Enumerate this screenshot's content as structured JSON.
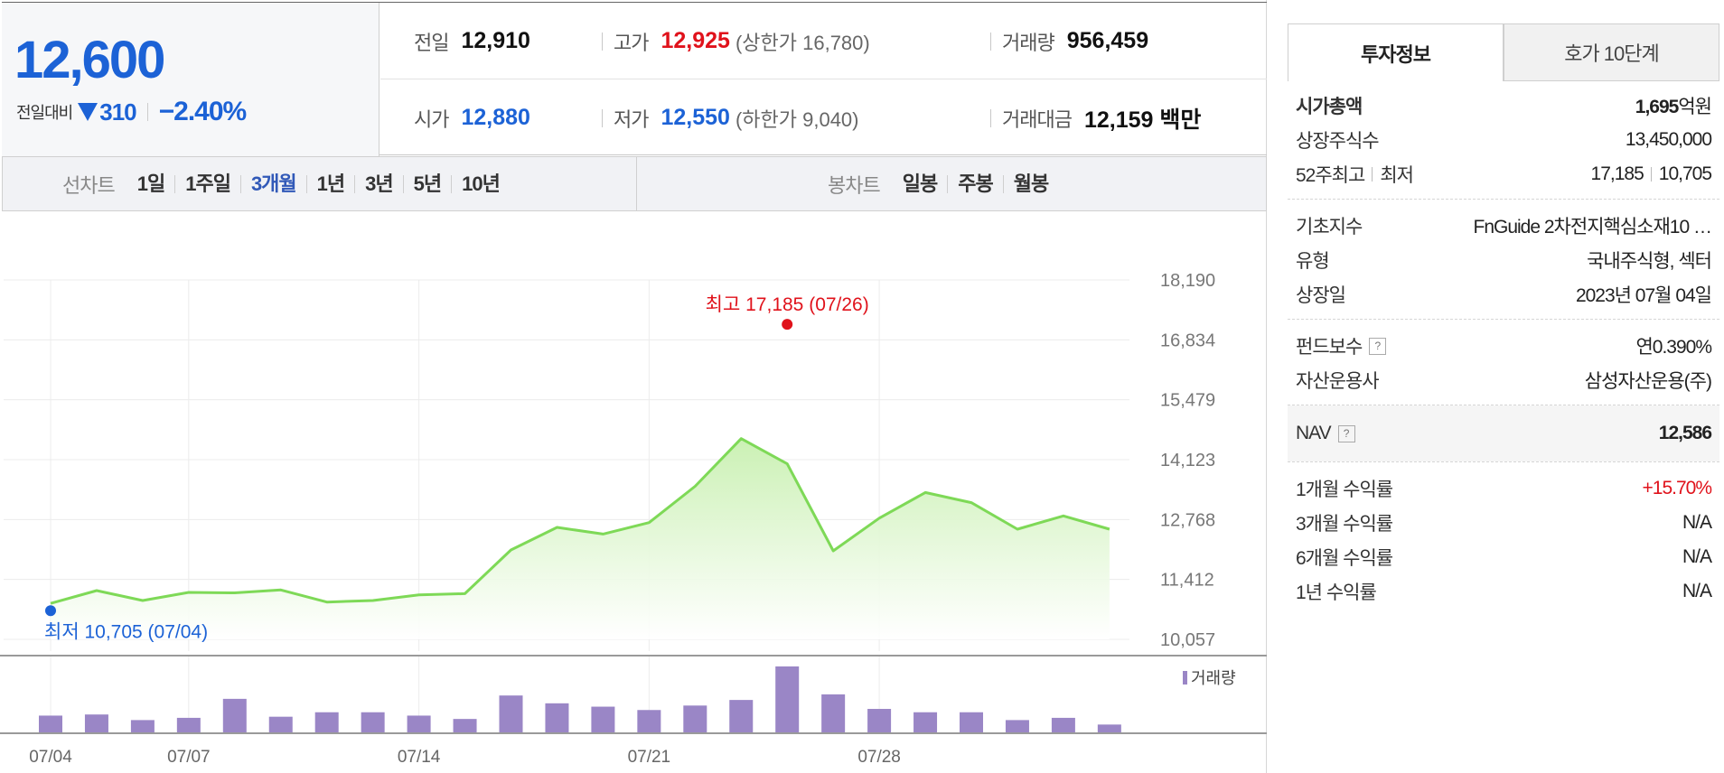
{
  "quote": {
    "price": "12,600",
    "change_label": "전일대비",
    "change_amount": "310",
    "change_pct": "−2.40%",
    "row1": [
      {
        "key": "전일",
        "value": "12,910"
      },
      {
        "key": "고가",
        "value": "12,925",
        "limit_label": "(상한가 16,780)"
      },
      {
        "key": "거래량",
        "value": "956,459"
      }
    ],
    "row2": [
      {
        "key": "시가",
        "value": "12,880"
      },
      {
        "key": "저가",
        "value": "12,550",
        "limit_label": "(하한가 9,040)"
      },
      {
        "key": "거래대금",
        "value": "12,159 백만"
      }
    ]
  },
  "period": {
    "line_label": "선차트",
    "line_items": [
      "1일",
      "1주일",
      "3개월",
      "1년",
      "3년",
      "5년",
      "10년"
    ],
    "active": "3개월",
    "candle_label": "봉차트",
    "candle_items": [
      "일봉",
      "주봉",
      "월봉"
    ]
  },
  "chart_data": {
    "type": "area",
    "y_ticks": [
      "18,190",
      "16,834",
      "15,479",
      "14,123",
      "12,768",
      "11,412",
      "10,057"
    ],
    "ylim": [
      10057,
      18190
    ],
    "x_tick_labels": [
      "07/04",
      "07/07",
      "07/14",
      "07/21",
      "07/28"
    ],
    "x_tick_index": [
      0,
      3,
      8,
      13,
      18
    ],
    "dates": [
      "07/04",
      "07/05",
      "07/06",
      "07/07",
      "07/10",
      "07/11",
      "07/12",
      "07/13",
      "07/14",
      "07/17",
      "07/18",
      "07/19",
      "07/20",
      "07/21",
      "07/24",
      "07/25",
      "07/26",
      "07/27",
      "07/28",
      "07/31",
      "08/01",
      "08/02",
      "08/03",
      "08/04"
    ],
    "values": [
      10870,
      11160,
      10935,
      11120,
      11110,
      11175,
      10900,
      10935,
      11065,
      11090,
      12080,
      12590,
      12440,
      12700,
      13520,
      14600,
      14030,
      12060,
      12800,
      13380,
      13150,
      12550,
      12850,
      12550
    ],
    "volume": [
      30,
      32,
      22,
      26,
      60,
      28,
      36,
      36,
      30,
      24,
      66,
      52,
      46,
      40,
      48,
      58,
      118,
      68,
      42,
      36,
      36,
      22,
      26,
      14
    ],
    "high_label": "최고 17,185 (07/26)",
    "high_value": 17185,
    "high_index": 16,
    "low_label": "최저 10,705 (07/04)",
    "low_value": 10705,
    "low_index": 0,
    "volume_legend": "거래량",
    "colors": {
      "line": "#7ed957",
      "fill_top": "#c8f0b0",
      "volume": "#9a86c6",
      "high": "#e0121b",
      "low": "#1c62d6"
    }
  },
  "tabs": {
    "info": "투자정보",
    "hoga": "호가 10단계"
  },
  "info": {
    "market_cap_key": "시가총액",
    "market_cap_num": "1,695",
    "market_cap_unit": "억원",
    "shares_key": "상장주식수",
    "shares_value": "13,450,000",
    "w52_key_a": "52주최고",
    "w52_key_b": "최저",
    "w52_high": "17,185",
    "w52_low": "10,705",
    "base_index_key": "기초지수",
    "base_index_value": "FnGuide 2차전지핵심소재10 …",
    "type_key": "유형",
    "type_value": "국내주식형, 섹터",
    "listed_key": "상장일",
    "listed_value": "2023년 07월 04일",
    "fee_key": "펀드보수",
    "fee_value": "연0.390%",
    "manager_key": "자산운용사",
    "manager_value": "삼성자산운용(주)",
    "nav_key": "NAV",
    "nav_value": "12,586",
    "r1m_key": "1개월 수익률",
    "r1m_value": "+15.70%",
    "r3m_key": "3개월 수익률",
    "r3m_value": "N/A",
    "r6m_key": "6개월 수익률",
    "r6m_value": "N/A",
    "r1y_key": "1년 수익률",
    "r1y_value": "N/A",
    "help_glyph": "?"
  }
}
